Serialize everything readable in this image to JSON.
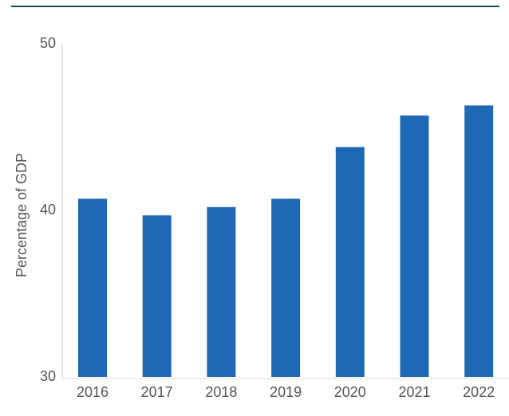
{
  "chart_data": {
    "type": "bar",
    "y_label": "Percentage of GDP",
    "categories": [
      "2016",
      "2017",
      "2018",
      "2019",
      "2020",
      "2021",
      "2022"
    ],
    "values": [
      40.7,
      39.7,
      40.2,
      40.7,
      43.8,
      45.7,
      46.3
    ],
    "color": "#1f68b3",
    "ylim": [
      30,
      50
    ],
    "yticks": [
      30,
      40,
      50
    ],
    "grid": false
  }
}
